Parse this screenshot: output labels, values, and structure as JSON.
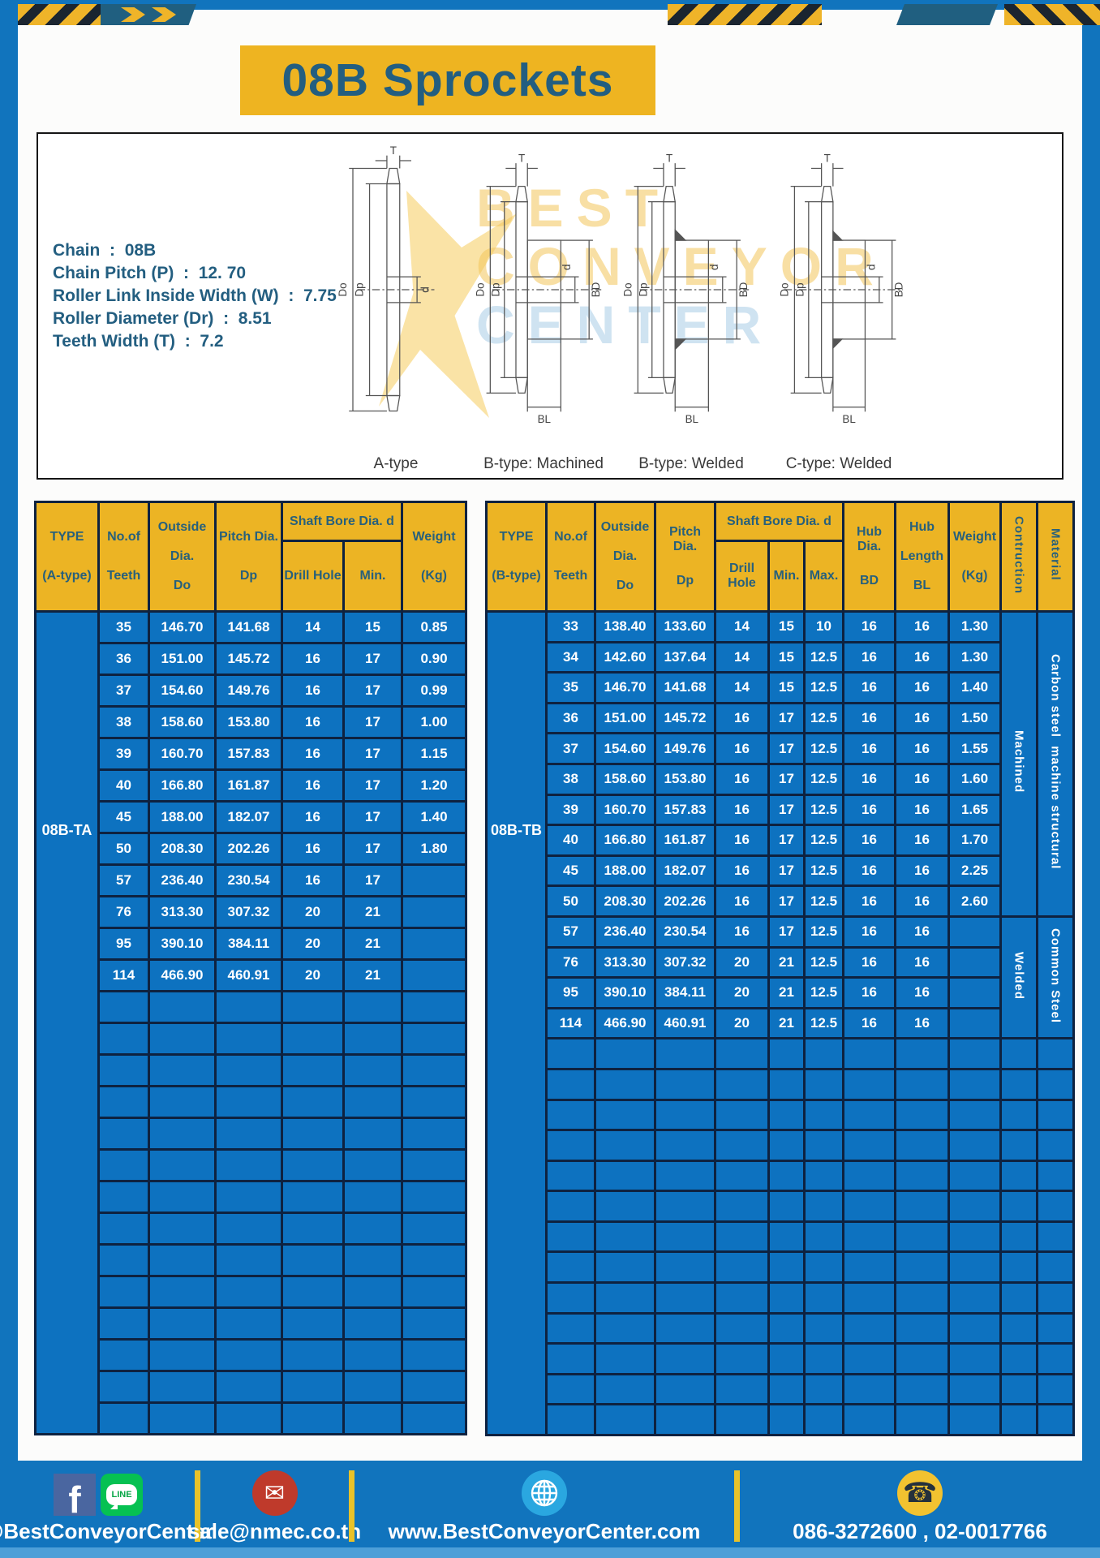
{
  "page": {
    "title": "08B Sprockets"
  },
  "colors": {
    "frame_blue": "#1174bd",
    "table_blue": "#0d72c0",
    "header_yellow": "#ecb424",
    "banner_yellow": "#eeb421",
    "border_navy": "#0e2240",
    "teal_text": "#235e80",
    "divider_yellow": "#e9c229"
  },
  "specs": {
    "separator": ":",
    "items": [
      {
        "label": "Chain",
        "value": "08B"
      },
      {
        "label": "Chain Pitch (P)",
        "value": "12. 70"
      },
      {
        "label": "Roller Link Inside Width (W)",
        "value": "7.75"
      },
      {
        "label": "Roller Diameter (Dr)",
        "value": "8.51"
      },
      {
        "label": "Teeth Width (T)",
        "value": "7.2"
      }
    ]
  },
  "diagram": {
    "captions": [
      "A-type",
      "B-type: Machined",
      "B-type: Welded",
      "C-type: Welded"
    ],
    "dims": {
      "T": "T",
      "Do": "Do",
      "Dp": "Dp",
      "d": "d",
      "BD": "BD",
      "BL": "BL"
    },
    "watermark": [
      "BEST",
      "CONVEYOR",
      "CENTER"
    ]
  },
  "table_a": {
    "type_label": "08B-TA",
    "header": {
      "type": [
        "TYPE",
        "(A-type)"
      ],
      "teeth": [
        "No.of",
        "Teeth"
      ],
      "outside": [
        "Outside",
        "Dia.",
        "Do"
      ],
      "pitch": [
        "Pitch Dia.",
        "Dp"
      ],
      "shaft_bore": "Shaft Bore Dia. d",
      "drill": "Drill Hole",
      "min": "Min.",
      "weight": [
        "Weight",
        "(Kg)"
      ]
    },
    "rows": [
      [
        "35",
        "146.70",
        "141.68",
        "14",
        "15",
        "0.85"
      ],
      [
        "36",
        "151.00",
        "145.72",
        "16",
        "17",
        "0.90"
      ],
      [
        "37",
        "154.60",
        "149.76",
        "16",
        "17",
        "0.99"
      ],
      [
        "38",
        "158.60",
        "153.80",
        "16",
        "17",
        "1.00"
      ],
      [
        "39",
        "160.70",
        "157.83",
        "16",
        "17",
        "1.15"
      ],
      [
        "40",
        "166.80",
        "161.87",
        "16",
        "17",
        "1.20"
      ],
      [
        "45",
        "188.00",
        "182.07",
        "16",
        "17",
        "1.40"
      ],
      [
        "50",
        "208.30",
        "202.26",
        "16",
        "17",
        "1.80"
      ],
      [
        "57",
        "236.40",
        "230.54",
        "16",
        "17",
        ""
      ],
      [
        "76",
        "313.30",
        "307.32",
        "20",
        "21",
        ""
      ],
      [
        "95",
        "390.10",
        "384.11",
        "20",
        "21",
        ""
      ],
      [
        "114",
        "466.90",
        "460.91",
        "20",
        "21",
        ""
      ]
    ],
    "empty_rows": 14
  },
  "table_b": {
    "type_label": "08B-TB",
    "header": {
      "type": [
        "TYPE",
        "(B-type)"
      ],
      "teeth": [
        "No.of",
        "Teeth"
      ],
      "outside": [
        "Outside",
        "Dia.",
        "Do"
      ],
      "pitch": [
        "Pitch Dia.",
        "Dp"
      ],
      "shaft_bore": "Shaft Bore Dia. d",
      "drill": "Drill Hole",
      "min": "Min.",
      "max": "Max.",
      "hub_dia": [
        "Hub Dia.",
        "BD"
      ],
      "hub_length": [
        "Hub",
        "Length",
        "BL"
      ],
      "weight": [
        "Weight",
        "(Kg)"
      ],
      "construction": "Contruction",
      "material": "Material"
    },
    "rows": [
      [
        "33",
        "138.40",
        "133.60",
        "14",
        "15",
        "10",
        "16",
        "16",
        "1.30"
      ],
      [
        "34",
        "142.60",
        "137.64",
        "14",
        "15",
        "12.5",
        "16",
        "16",
        "1.30"
      ],
      [
        "35",
        "146.70",
        "141.68",
        "14",
        "15",
        "12.5",
        "16",
        "16",
        "1.40"
      ],
      [
        "36",
        "151.00",
        "145.72",
        "16",
        "17",
        "12.5",
        "16",
        "16",
        "1.50"
      ],
      [
        "37",
        "154.60",
        "149.76",
        "16",
        "17",
        "12.5",
        "16",
        "16",
        "1.55"
      ],
      [
        "38",
        "158.60",
        "153.80",
        "16",
        "17",
        "12.5",
        "16",
        "16",
        "1.60"
      ],
      [
        "39",
        "160.70",
        "157.83",
        "16",
        "17",
        "12.5",
        "16",
        "16",
        "1.65"
      ],
      [
        "40",
        "166.80",
        "161.87",
        "16",
        "17",
        "12.5",
        "16",
        "16",
        "1.70"
      ],
      [
        "45",
        "188.00",
        "182.07",
        "16",
        "17",
        "12.5",
        "16",
        "16",
        "2.25"
      ],
      [
        "50",
        "208.30",
        "202.26",
        "16",
        "17",
        "12.5",
        "16",
        "16",
        "2.60"
      ],
      [
        "57",
        "236.40",
        "230.54",
        "16",
        "17",
        "12.5",
        "16",
        "16",
        ""
      ],
      [
        "76",
        "313.30",
        "307.32",
        "20",
        "21",
        "12.5",
        "16",
        "16",
        ""
      ],
      [
        "95",
        "390.10",
        "384.11",
        "20",
        "21",
        "12.5",
        "16",
        "16",
        ""
      ],
      [
        "114",
        "466.90",
        "460.91",
        "20",
        "21",
        "12.5",
        "16",
        "16",
        ""
      ]
    ],
    "construction_groups": [
      {
        "label": "Machined",
        "rows": 10
      },
      {
        "label": "Welded",
        "rows": 4
      }
    ],
    "material_groups": [
      {
        "label": "Carbon steel  machine structural",
        "rows": 10
      },
      {
        "label": "Common Steel",
        "rows": 4
      }
    ],
    "empty_rows": 13
  },
  "footer": {
    "facebook_glyph": "f",
    "line_label": "LINE",
    "email_glyph": "✉",
    "phone_glyph": "☎",
    "facebook_line_text": "@BestConveyorCenter",
    "email": "sale@nmec.co.th",
    "website": "www.BestConveyorCenter.com",
    "phone": "086-3272600 , 02-0017766"
  }
}
